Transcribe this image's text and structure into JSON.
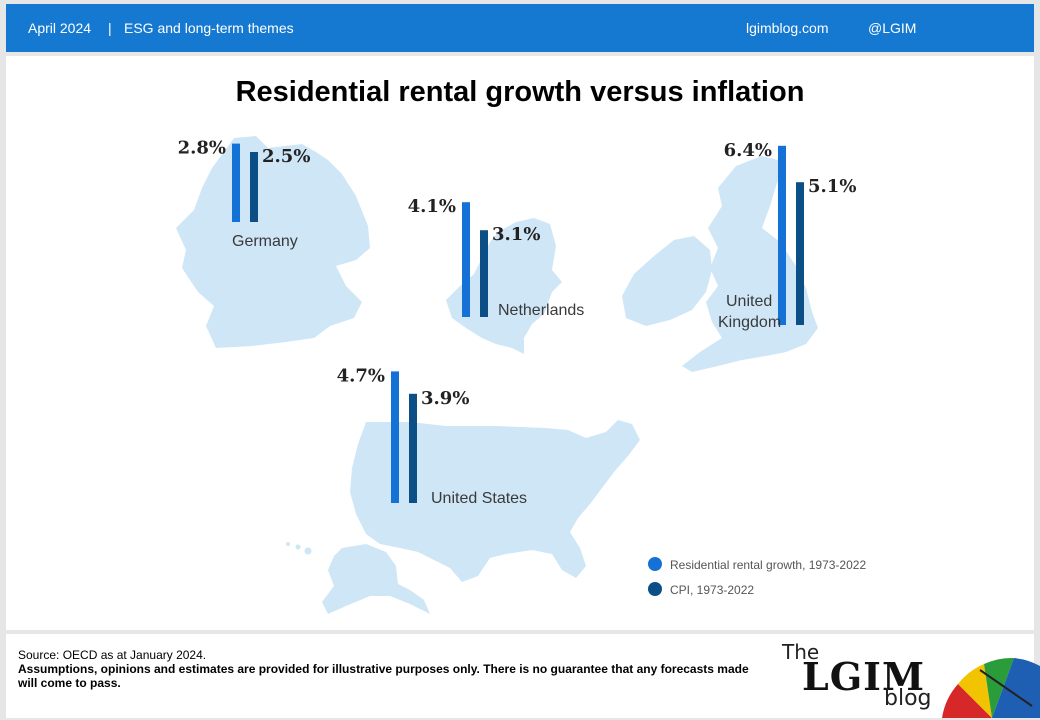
{
  "header": {
    "date": "April 2024",
    "separator": "|",
    "topic": "ESG and long-term themes",
    "site": "lgimblog.com",
    "handle": "@LGIM"
  },
  "colors": {
    "header_bg": "#1679d1",
    "rental": "#1472d6",
    "cpi": "#0b4f86",
    "map": "#cfe6f7"
  },
  "chart_data": {
    "type": "bar",
    "title": "Residential rental growth versus inflation",
    "value_format": "percent",
    "categories": [
      "Germany",
      "Netherlands",
      "United Kingdom",
      "United States"
    ],
    "series": [
      {
        "name": "Residential rental growth, 1973-2022",
        "values": [
          2.8,
          4.1,
          6.4,
          4.7
        ]
      },
      {
        "name": "CPI, 1973-2022",
        "values": [
          2.5,
          3.1,
          5.1,
          3.9
        ]
      }
    ],
    "data_labels": [
      [
        "2.8%",
        "2.5%"
      ],
      [
        "4.1%",
        "3.1%"
      ],
      [
        "6.4%",
        "5.1%"
      ],
      [
        "4.7%",
        "3.9%"
      ]
    ],
    "legend_position": "bottom-right",
    "grid": false
  },
  "footer": {
    "source": "Source: OECD as at January 2024.",
    "disclaimer": "Assumptions, opinions and estimates are provided for illustrative purposes only. There is no guarantee that any forecasts made will come to pass.",
    "logo": {
      "the": "The",
      "name": "LGIM",
      "blog": "blog"
    }
  }
}
